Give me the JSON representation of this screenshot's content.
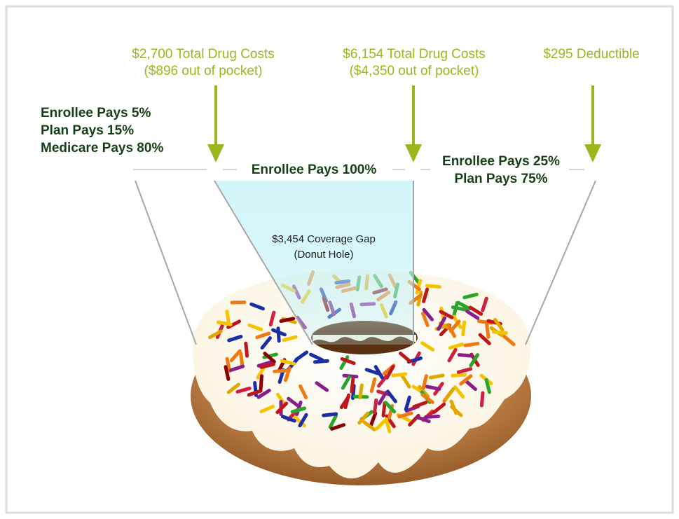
{
  "markers": [
    {
      "title": "$2,700 Total Drug Costs",
      "subtitle": "($896 out of pocket)"
    },
    {
      "title": "$6,154 Total Drug Costs",
      "subtitle": "($4,350 out of pocket)"
    },
    {
      "title": "$295 Deductible"
    }
  ],
  "phases": [
    {
      "lines": [
        "Enrollee Pays 5%",
        "Plan Pays 15%",
        "Medicare Pays 80%"
      ]
    },
    {
      "lines": [
        "Enrollee Pays 100%"
      ]
    },
    {
      "lines": [
        "Enrollee Pays 25%",
        "Plan Pays 75%"
      ]
    }
  ],
  "coverage_gap": {
    "title": "$3,454 Coverage Gap",
    "subtitle": "(Donut Hole)"
  }
}
